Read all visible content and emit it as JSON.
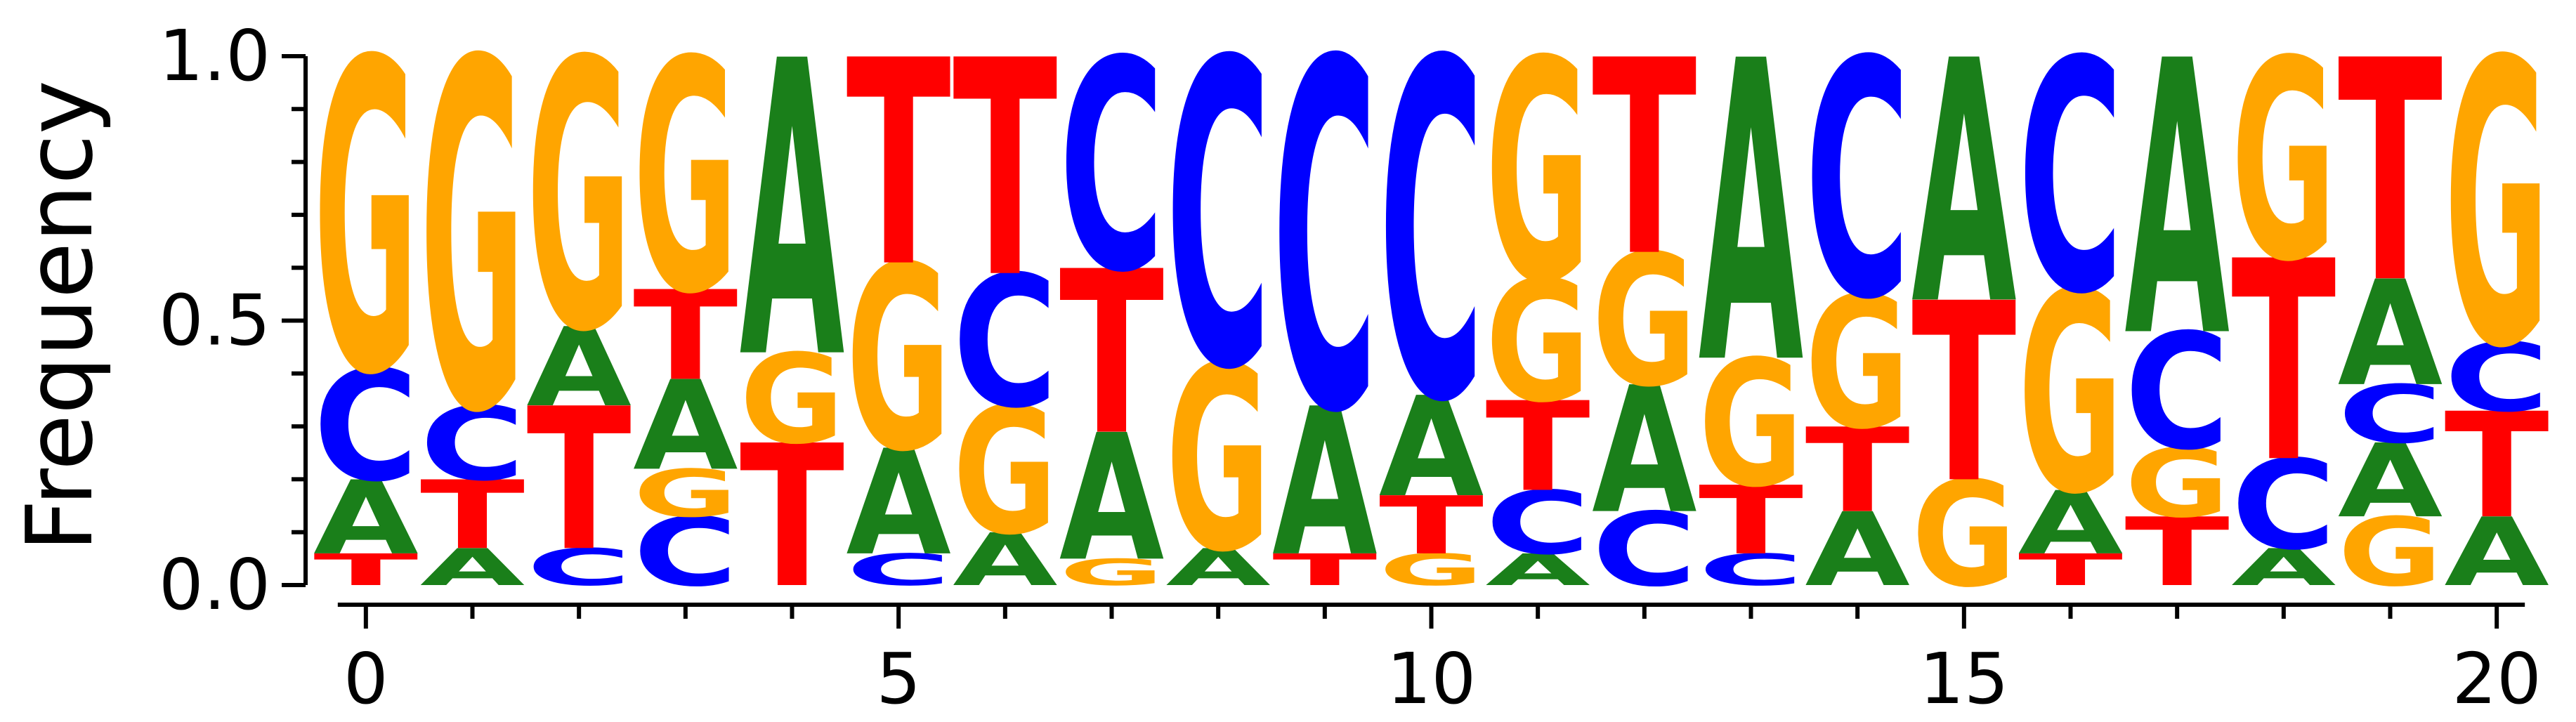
{
  "chart_data": {
    "type": "sequence-logo",
    "ylabel": "Frequency",
    "xlabel": "",
    "ylim": [
      0,
      1
    ],
    "yticks": [
      "0.0",
      "0.5",
      "1.0"
    ],
    "xticks": [
      "0",
      "5",
      "10",
      "15",
      "20"
    ],
    "colors": {
      "A": "#1a7f1a",
      "C": "#0000ff",
      "G": "#ffa500",
      "T": "#ff0000"
    },
    "positions": [
      [
        [
          "T",
          0.06
        ],
        [
          "A",
          0.14
        ],
        [
          "C",
          0.21
        ],
        [
          "G",
          0.59
        ]
      ],
      [
        [
          "A",
          0.07
        ],
        [
          "T",
          0.13
        ],
        [
          "C",
          0.14
        ],
        [
          "G",
          0.66
        ]
      ],
      [
        [
          "C",
          0.07
        ],
        [
          "T",
          0.27
        ],
        [
          "A",
          0.15
        ],
        [
          "G",
          0.51
        ]
      ],
      [
        [
          "C",
          0.13
        ],
        [
          "G",
          0.09
        ],
        [
          "A",
          0.17
        ],
        [
          "T",
          0.17
        ],
        [
          "G",
          0.44
        ]
      ],
      [
        [
          "T",
          0.27
        ],
        [
          "G",
          0.17
        ],
        [
          "A",
          0.56
        ]
      ],
      [
        [
          "C",
          0.06
        ],
        [
          "A",
          0.2
        ],
        [
          "G",
          0.35
        ],
        [
          "T",
          0.39
        ]
      ],
      [
        [
          "A",
          0.1
        ],
        [
          "G",
          0.24
        ],
        [
          "C",
          0.25
        ],
        [
          "T",
          0.41
        ]
      ],
      [
        [
          "G",
          0.05
        ],
        [
          "A",
          0.24
        ],
        [
          "T",
          0.31
        ],
        [
          "C",
          0.4
        ]
      ],
      [
        [
          "A",
          0.07
        ],
        [
          "G",
          0.35
        ],
        [
          "C",
          0.58
        ]
      ],
      [
        [
          "T",
          0.06
        ],
        [
          "A",
          0.28
        ],
        [
          "C",
          0.66
        ]
      ],
      [
        [
          "G",
          0.06
        ],
        [
          "T",
          0.11
        ],
        [
          "A",
          0.19
        ],
        [
          "C",
          0.64
        ]
      ],
      [
        [
          "A",
          0.06
        ],
        [
          "C",
          0.12
        ],
        [
          "T",
          0.17
        ],
        [
          "G",
          0.23
        ],
        [
          "G",
          0.42
        ]
      ],
      [
        [
          "C",
          0.14
        ],
        [
          "A",
          0.24
        ],
        [
          "G",
          0.25
        ],
        [
          "T",
          0.37
        ]
      ],
      [
        [
          "C",
          0.06
        ],
        [
          "T",
          0.13
        ],
        [
          "G",
          0.24
        ],
        [
          "A",
          0.57
        ]
      ],
      [
        [
          "A",
          0.14
        ],
        [
          "T",
          0.16
        ],
        [
          "G",
          0.25
        ],
        [
          "C",
          0.45
        ]
      ],
      [
        [
          "G",
          0.2
        ],
        [
          "T",
          0.34
        ],
        [
          "A",
          0.46
        ]
      ],
      [
        [
          "T",
          0.06
        ],
        [
          "A",
          0.12
        ],
        [
          "G",
          0.38
        ],
        [
          "C",
          0.44
        ]
      ],
      [
        [
          "T",
          0.13
        ],
        [
          "G",
          0.13
        ],
        [
          "C",
          0.22
        ],
        [
          "A",
          0.52
        ]
      ],
      [
        [
          "A",
          0.07
        ],
        [
          "C",
          0.17
        ],
        [
          "T",
          0.38
        ],
        [
          "G",
          0.38
        ]
      ],
      [
        [
          "G",
          0.13
        ],
        [
          "A",
          0.14
        ],
        [
          "C",
          0.11
        ],
        [
          "A",
          0.2
        ],
        [
          "T",
          0.42
        ]
      ],
      [
        [
          "A",
          0.13
        ],
        [
          "T",
          0.2
        ],
        [
          "C",
          0.13
        ],
        [
          "G",
          0.54
        ]
      ]
    ]
  }
}
